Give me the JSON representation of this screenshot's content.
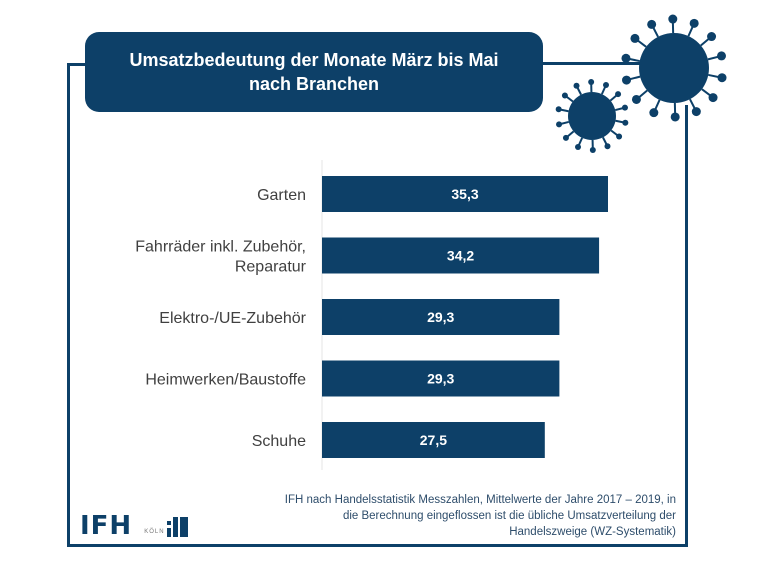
{
  "title": "Umsatzbedeutung der Monate März bis Mai nach Branchen",
  "colors": {
    "primary": "#0d4068",
    "bar_label": "#ffffff",
    "category_label": "#404040",
    "source_text": "#2e4d6b"
  },
  "icons": [
    "virus-large-icon",
    "virus-small-icon"
  ],
  "chart_data": {
    "type": "bar",
    "orientation": "horizontal",
    "title": "Umsatzbedeutung der Monate März bis Mai nach Branchen",
    "categories": [
      "Garten",
      "Fahrräder inkl. Zubehör, Reparatur",
      "Elektro-/UE-Zubehör",
      "Heimwerken/Baustoffe",
      "Schuhe"
    ],
    "category_lines": [
      [
        "Garten"
      ],
      [
        "Fahrräder inkl. Zubehör,",
        "Reparatur"
      ],
      [
        "Elektro-/UE-Zubehör"
      ],
      [
        "Heimwerken/Baustoffe"
      ],
      [
        "Schuhe"
      ]
    ],
    "values": [
      35.3,
      34.2,
      29.3,
      29.3,
      27.5
    ],
    "value_labels": [
      "35,3",
      "34,2",
      "29,3",
      "29,3",
      "27,5"
    ],
    "xlabel": "",
    "ylabel": "",
    "xlim": [
      0,
      38
    ],
    "grid": false,
    "legend": "none"
  },
  "source": {
    "lines": [
      "IFH nach Handelsstatistik Messzahlen, Mittelwerte der Jahre 2017 – 2019, in",
      "die Berechnung eingeflossen ist die übliche Umsatzverteilung der",
      "Handelszweige (WZ-Systematik)"
    ]
  },
  "logo": {
    "brand": "IFH",
    "city": "KÖLN"
  }
}
